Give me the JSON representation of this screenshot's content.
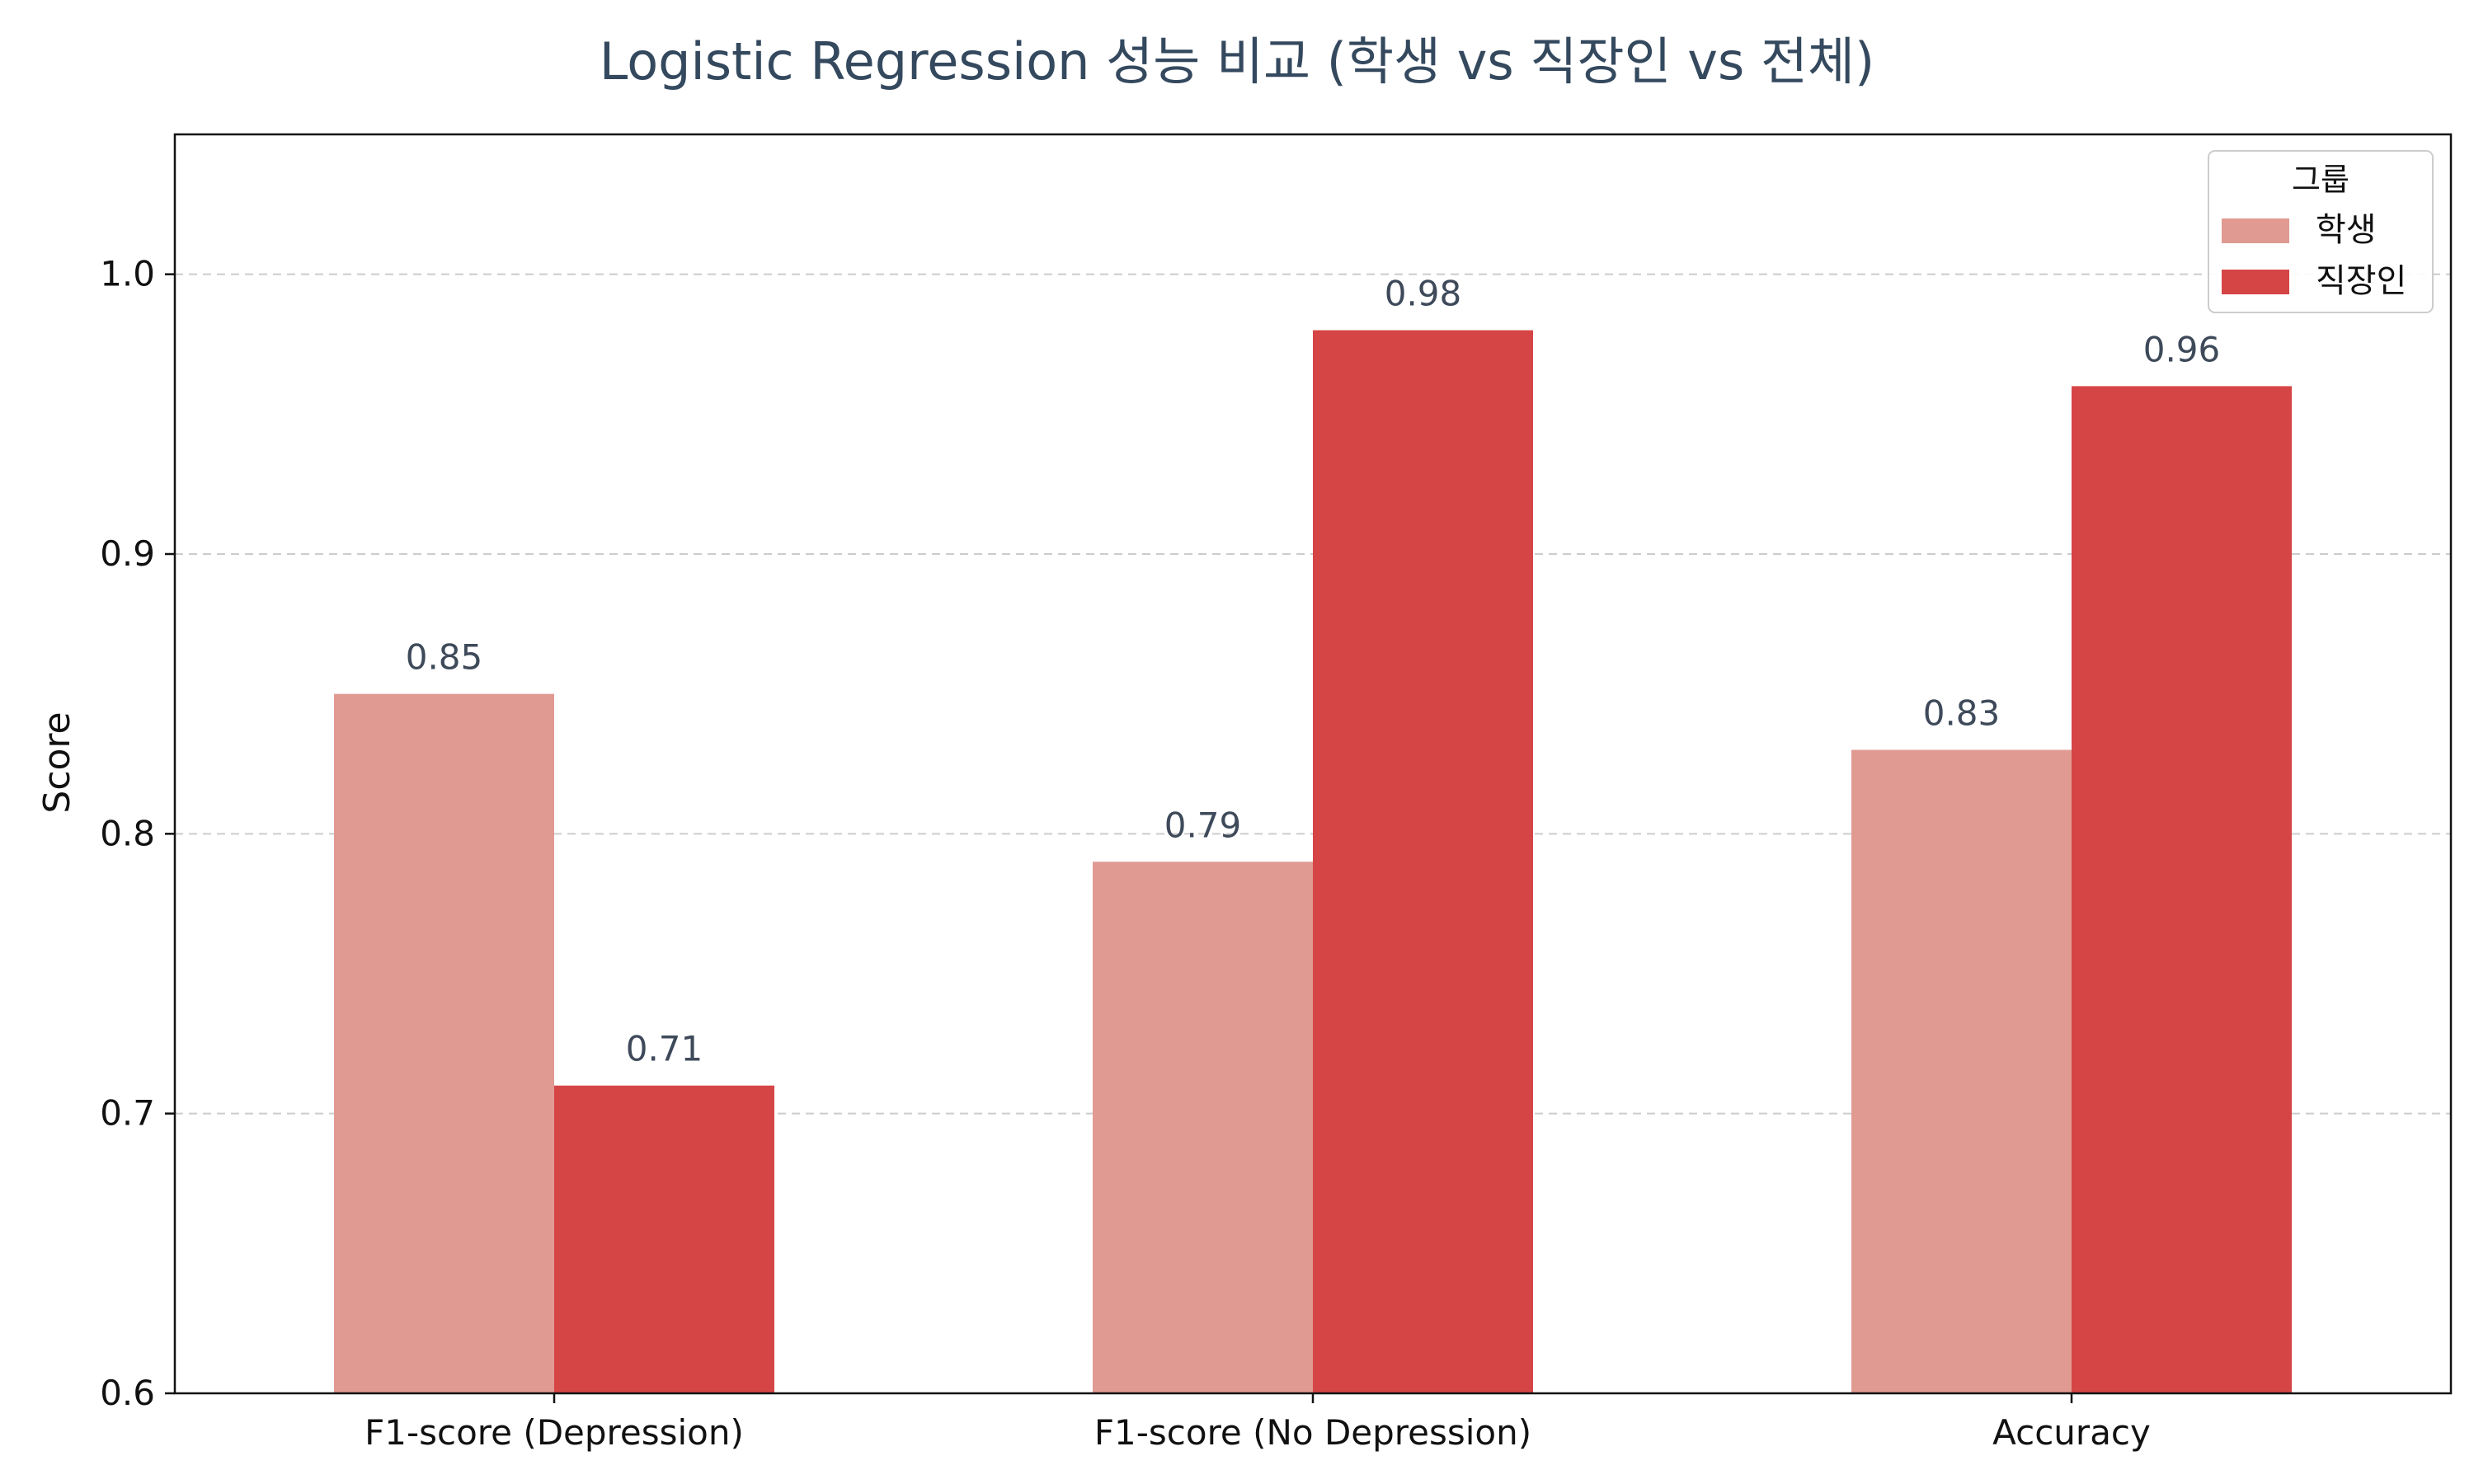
{
  "chart_data": {
    "type": "bar",
    "title": "Logistic Regression 성능 비교 (학생 vs 직장인 vs 전체)",
    "xlabel": "",
    "ylabel": "Score",
    "ylim": [
      0.6,
      1.05
    ],
    "yticks": [
      "0.6",
      "0.7",
      "0.8",
      "0.9",
      "1.0"
    ],
    "yticks_values": [
      0.6,
      0.7,
      0.8,
      0.9,
      1.0
    ],
    "grid": "y-dashed",
    "categories": [
      "F1-score (Depression)",
      "F1-score (No Depression)",
      "Accuracy"
    ],
    "series": [
      {
        "name": "학생",
        "color": "#e09a92",
        "values": [
          0.85,
          0.79,
          0.83
        ],
        "labels": [
          "0.85",
          "0.79",
          "0.83"
        ]
      },
      {
        "name": "직장인",
        "color": "#d64545",
        "values": [
          0.71,
          0.98,
          0.96
        ],
        "labels": [
          "0.71",
          "0.98",
          "0.96"
        ]
      }
    ],
    "legend": {
      "title": "그룹",
      "placement": "top-right"
    }
  }
}
